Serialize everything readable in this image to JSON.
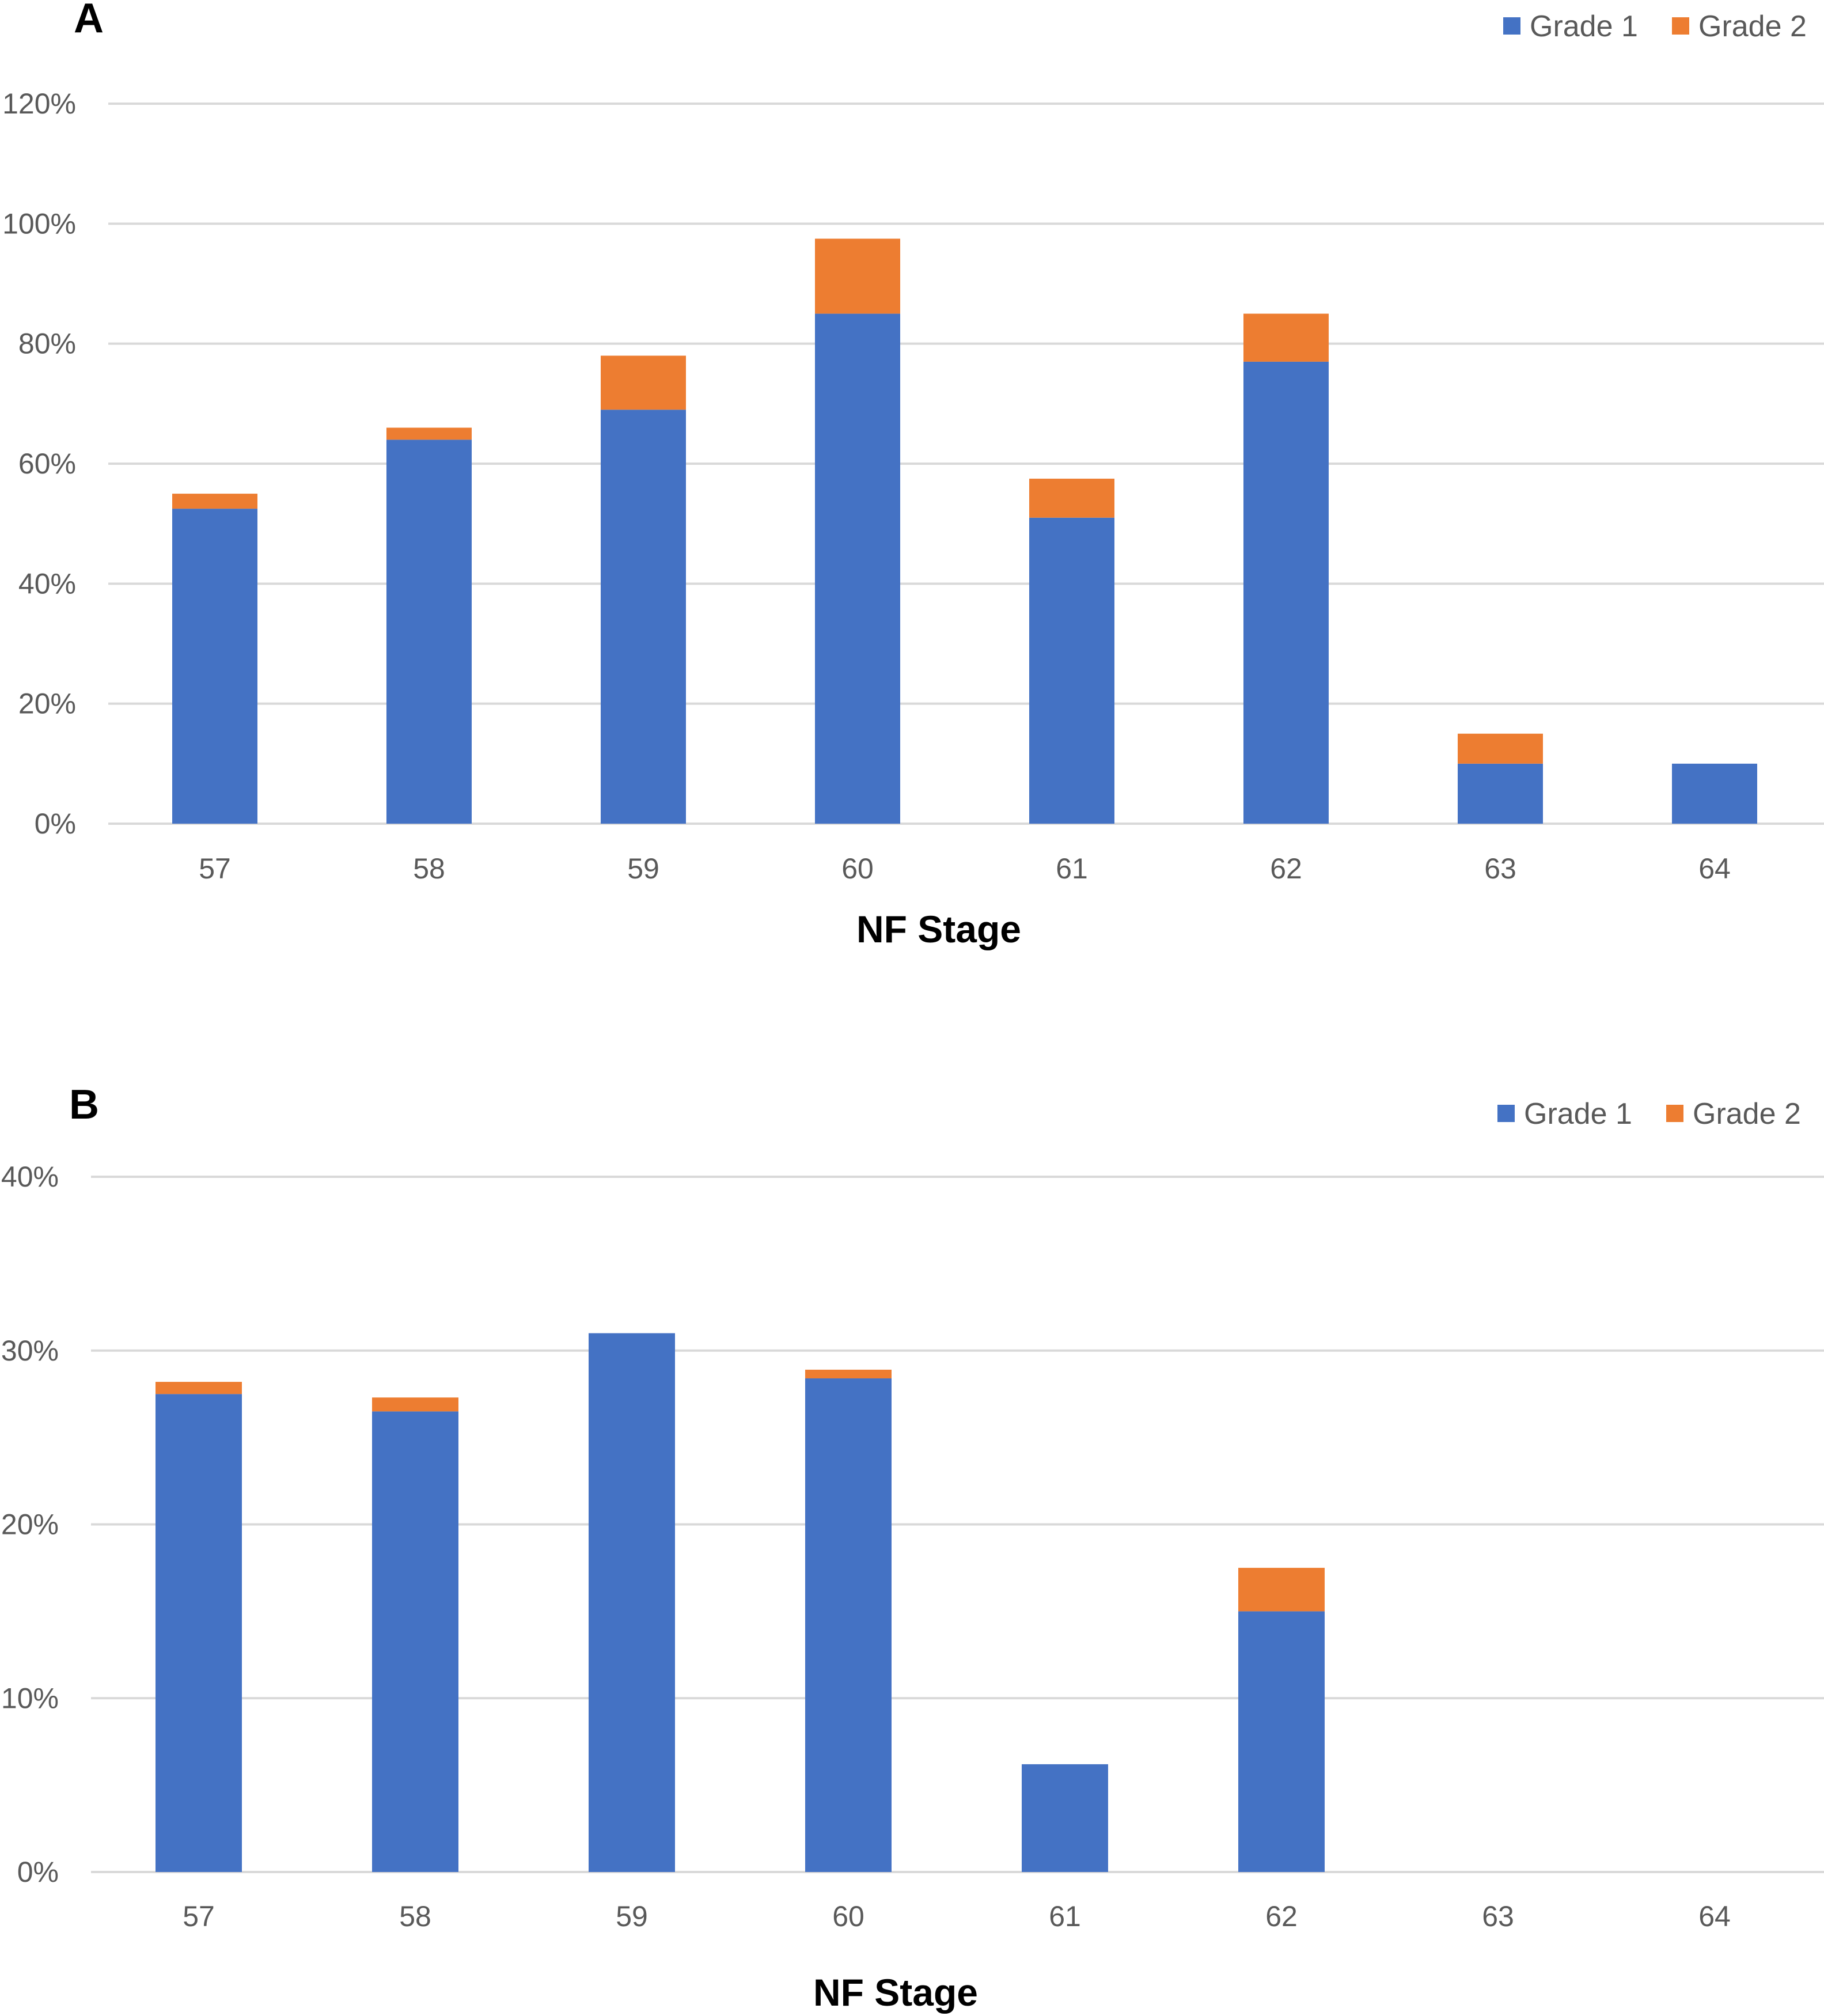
{
  "chart_data": [
    {
      "type": "bar",
      "stacked": true,
      "panel": "A",
      "categories": [
        "57",
        "58",
        "59",
        "60",
        "61",
        "62",
        "63",
        "64"
      ],
      "series": [
        {
          "name": "Grade 1",
          "color": "#4472C4",
          "values": [
            52.5,
            64,
            69,
            85,
            51,
            77,
            10,
            10
          ]
        },
        {
          "name": "Grade 2",
          "color": "#ED7D31",
          "values": [
            2.5,
            2,
            9,
            12.5,
            6.5,
            8,
            5,
            0
          ]
        }
      ],
      "xlabel": "NF Stage",
      "ylabel": "",
      "ylim": [
        0,
        120
      ],
      "yticks": [
        "0%",
        "20%",
        "40%",
        "60%",
        "80%",
        "100%",
        "120%"
      ],
      "grid": true,
      "legend": "top-right"
    },
    {
      "type": "bar",
      "stacked": true,
      "panel": "B",
      "categories": [
        "57",
        "58",
        "59",
        "60",
        "61",
        "62",
        "63",
        "64"
      ],
      "series": [
        {
          "name": "Grade 1",
          "color": "#4472C4",
          "values": [
            27.5,
            26.5,
            31,
            28.4,
            6.2,
            15,
            0,
            0
          ]
        },
        {
          "name": "Grade 2",
          "color": "#ED7D31",
          "values": [
            0.7,
            0.8,
            0,
            0.5,
            0,
            2.5,
            0,
            0
          ]
        }
      ],
      "xlabel": "NF Stage",
      "ylabel": "",
      "ylim": [
        0,
        40
      ],
      "yticks": [
        "0%",
        "10%",
        "20%",
        "30%",
        "40%"
      ],
      "grid": true,
      "legend": "top-right"
    }
  ]
}
